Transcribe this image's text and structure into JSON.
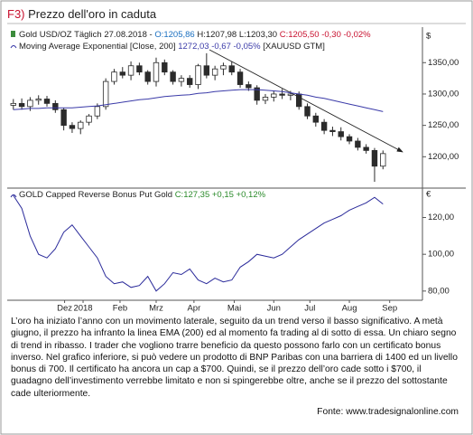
{
  "title_prefix": "F3)",
  "title": "Prezzo dell'oro in caduta",
  "chart_data": [
    {
      "type": "candlestick",
      "currency": "$",
      "legend": [
        "Gold USD/OZ Täglich 27.08.2018 - ",
        "O:1205,86",
        " H:1207,98 L:1203,30 ",
        "C:1205,50 -0,30 -0,02%"
      ],
      "open": [
        1282,
        1285,
        1280,
        1290,
        1292,
        1285,
        1275,
        1250,
        1245,
        1255,
        1265,
        1280,
        1320,
        1335,
        1330,
        1345,
        1335,
        1320,
        1350,
        1335,
        1320,
        1325,
        1315,
        1345,
        1330,
        1340,
        1345,
        1335,
        1315,
        1310,
        1290,
        1295,
        1300,
        1298,
        1300,
        1280,
        1265,
        1255,
        1242,
        1240,
        1232,
        1225,
        1215,
        1210,
        1185
      ],
      "high": [
        1292,
        1293,
        1295,
        1298,
        1297,
        1290,
        1278,
        1255,
        1258,
        1268,
        1285,
        1325,
        1340,
        1343,
        1352,
        1350,
        1338,
        1358,
        1355,
        1338,
        1330,
        1330,
        1348,
        1365,
        1345,
        1350,
        1352,
        1340,
        1320,
        1314,
        1300,
        1305,
        1308,
        1305,
        1304,
        1285,
        1270,
        1260,
        1248,
        1247,
        1236,
        1230,
        1220,
        1214,
        1210
      ],
      "low": [
        1275,
        1275,
        1273,
        1283,
        1280,
        1270,
        1242,
        1238,
        1236,
        1250,
        1260,
        1275,
        1315,
        1325,
        1322,
        1330,
        1315,
        1312,
        1330,
        1315,
        1312,
        1310,
        1308,
        1325,
        1322,
        1330,
        1330,
        1310,
        1305,
        1283,
        1284,
        1288,
        1292,
        1290,
        1275,
        1260,
        1248,
        1236,
        1233,
        1226,
        1220,
        1210,
        1205,
        1160,
        1180
      ],
      "close": [
        1285,
        1280,
        1290,
        1292,
        1285,
        1275,
        1250,
        1245,
        1255,
        1265,
        1280,
        1320,
        1335,
        1330,
        1345,
        1335,
        1320,
        1350,
        1335,
        1320,
        1325,
        1315,
        1345,
        1330,
        1340,
        1345,
        1335,
        1315,
        1310,
        1290,
        1295,
        1300,
        1298,
        1300,
        1280,
        1265,
        1255,
        1242,
        1240,
        1232,
        1225,
        1215,
        1210,
        1185,
        1205
      ],
      "up_color": "#ffffff",
      "down_color": "#2b2b2b",
      "series": [
        {
          "name": "Moving Average Exponential [Close, 200]",
          "value_label": "1272,03 -0,67 -0,05%",
          "suffix": "[XAUUSD GTM]",
          "color": "#3a3aa8",
          "values": [
            1275,
            1276,
            1277,
            1277,
            1278,
            1278,
            1278,
            1278,
            1279,
            1280,
            1281,
            1283,
            1285,
            1287,
            1289,
            1291,
            1292,
            1294,
            1296,
            1297,
            1298,
            1299,
            1301,
            1302,
            1304,
            1305,
            1306,
            1307,
            1307,
            1307,
            1306,
            1305,
            1304,
            1302,
            1300,
            1298,
            1295,
            1293,
            1290,
            1287,
            1284,
            1281,
            1278,
            1275,
            1272
          ]
        }
      ],
      "ylim": [
        1150,
        1385
      ],
      "yticks": [
        {
          "value": 1200,
          "label": "1200,00"
        },
        {
          "value": 1250,
          "label": "1250,00"
        },
        {
          "value": 1300,
          "label": "1300,00"
        },
        {
          "value": 1350,
          "label": "1350,00"
        }
      ]
    },
    {
      "type": "line",
      "currency": "€",
      "series": [
        {
          "name": "GOLD Capped Reverse Bonus Put Gold",
          "value_label": "C:127,35 +0,15 +0,12%",
          "color": "#2a2a9a",
          "values": [
            132,
            125,
            110,
            100,
            98,
            103,
            112,
            116,
            110,
            104,
            98,
            88,
            84,
            85,
            82,
            83,
            88,
            80,
            84,
            90,
            89,
            92,
            86,
            84,
            87,
            85,
            86,
            93,
            96,
            100,
            99,
            98,
            100,
            104,
            108,
            111,
            114,
            117,
            119,
            121,
            124,
            126,
            128,
            131,
            127.35
          ]
        }
      ],
      "ylim": [
        75,
        136
      ],
      "yticks": [
        {
          "value": 80,
          "label": "80,00"
        },
        {
          "value": 100,
          "label": "100,00"
        },
        {
          "value": 120,
          "label": "120,00"
        }
      ],
      "xlim": [
        -0.3,
        48.7
      ],
      "xticks": [
        {
          "value": 6.1,
          "label": "Dez"
        },
        {
          "value": 8.3,
          "label": "2018"
        },
        {
          "value": 12.7,
          "label": "Feb"
        },
        {
          "value": 17,
          "label": "Mrz"
        },
        {
          "value": 21.5,
          "label": "Apr"
        },
        {
          "value": 26.3,
          "label": "Mai"
        },
        {
          "value": 31,
          "label": "Jun"
        },
        {
          "value": 35.3,
          "label": "Jul"
        },
        {
          "value": 40,
          "label": "Aug"
        },
        {
          "value": 44.8,
          "label": "Sep"
        }
      ]
    }
  ],
  "caption": "L’oro ha iniziato l’anno con un movimento laterale, seguito da un trend verso il basso significativo. A metà giugno, il prezzo ha infranto la linea EMA (200) ed al momento fa trading al di sotto di essa. Un chiaro segno di trend in ribasso. I trader che vogliono trarre beneficio da questo possono farlo con un certificato bonus inverso. Nel grafico inferiore, si può vedere un prodotto di BNP Paribas con una barriera di 1400 ed un livello bonus di 700. Il certificato ha ancora un cap a $700. Quindi, se il prezzo dell’oro cade sotto i $700, il guadagno dell’investimento verrebbe limitato e non si spingerebbe oltre, anche se il prezzo del sottostante cade ulteriormente.",
  "source": "Fonte: www.tradesignalonline.com"
}
